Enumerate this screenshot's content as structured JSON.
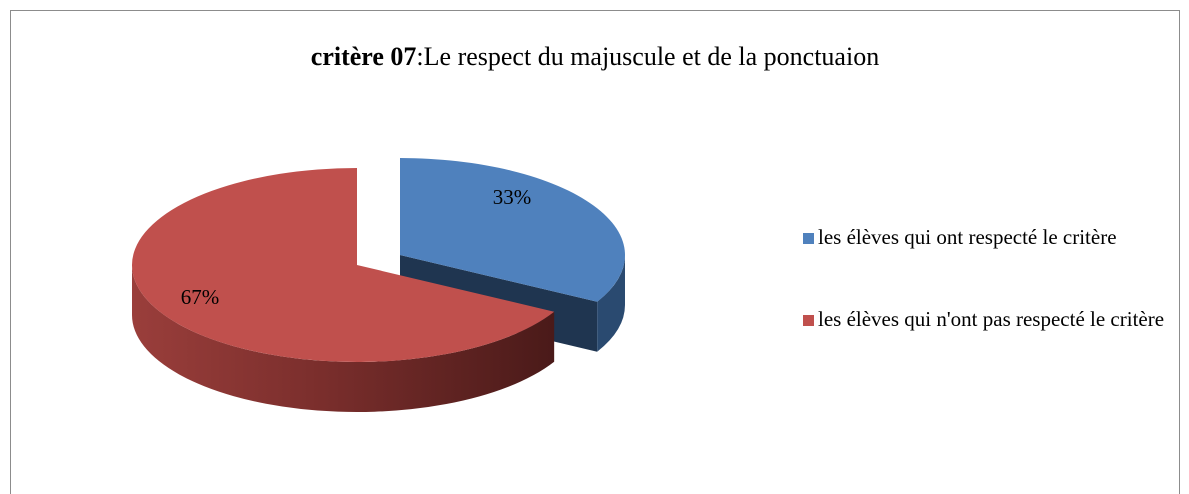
{
  "chart_data": {
    "type": "pie3d",
    "title": [
      "critère 07",
      ":Le respect du majuscule et de la ponctuaion"
    ],
    "categories": [
      "les élèves qui ont respecté le critère",
      "les élèves qui n'ont pas respecté le critère"
    ],
    "values": [
      33,
      67
    ],
    "value_labels": [
      "33%",
      "67%"
    ],
    "colors": [
      "#4f81bd",
      "#c0504d"
    ],
    "legend": "right"
  }
}
